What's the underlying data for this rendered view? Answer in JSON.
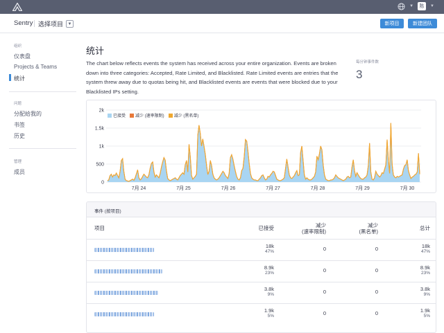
{
  "topbar": {
    "avatar_initial": "陈",
    "logo_icon": "sentry-logo-icon",
    "language_icon": "globe-icon"
  },
  "header": {
    "brand": "Sentry",
    "project_select": "选择项目",
    "new_project_button": "新项目",
    "new_team_button": "新建团队"
  },
  "sidebar": {
    "section_org": "组织",
    "items_org": [
      "仪表盘",
      "Projects & Teams",
      "统计"
    ],
    "active_item": "统计",
    "section_issues": "问题",
    "items_issues": [
      "分配给我的",
      "书签",
      "历史"
    ],
    "section_manage": "管理",
    "items_manage": [
      "成员"
    ]
  },
  "main": {
    "title": "统计",
    "description": "The chart below reflects events the system has received across your entire organization. Events are broken down into three categories: Accepted, Rate Limited, and Blacklisted. Rate Limited events are entries that the system threw away due to quotas being hit, and Blacklisted events are events that were blocked due to your Blacklisted IPs setting.",
    "epm_label": "每分钟事件数",
    "epm_value": "3"
  },
  "chart_data": {
    "type": "area",
    "legend": [
      {
        "name": "已接受",
        "color": "#a9d5f2"
      },
      {
        "name": "减少 (速率限制)",
        "color": "#e8793a"
      },
      {
        "name": "减少 (黑名单)",
        "color": "#f0a830"
      }
    ],
    "yticks": [
      "0",
      "500",
      "1k",
      "1.5k",
      "2k"
    ],
    "ylim": [
      0,
      2000
    ],
    "xticks": [
      "7月 24",
      "7月 25",
      "7月 26",
      "7月 27",
      "7月 28",
      "7月 29",
      "7月 30"
    ],
    "series": [
      {
        "name": "已接受",
        "values": [
          40,
          60,
          180,
          220,
          140,
          200,
          180,
          250,
          180,
          120,
          300,
          600,
          650,
          300,
          80,
          40,
          30,
          20,
          40,
          60,
          80,
          50,
          120,
          230,
          340,
          120,
          60,
          90,
          160,
          220,
          180,
          140,
          120,
          200,
          380,
          520,
          560,
          280,
          140,
          200,
          160,
          120,
          240,
          420,
          560,
          680,
          610,
          320,
          100,
          60,
          40,
          60,
          80,
          100,
          120,
          80,
          60,
          120,
          180,
          220,
          260,
          220,
          480,
          600,
          280,
          1050,
          700,
          180,
          80,
          120,
          160,
          220,
          1300,
          1580,
          1350,
          1000,
          1200,
          980,
          760,
          460,
          210,
          300,
          600,
          460,
          220,
          120,
          80,
          60,
          80,
          120,
          180,
          240,
          300,
          260,
          180,
          140,
          100,
          240,
          680,
          760,
          640,
          460,
          300,
          160,
          80,
          60,
          120,
          320,
          380,
          700,
          1180,
          1140,
          860,
          520,
          240,
          120,
          80,
          60,
          60,
          40,
          40,
          80,
          120,
          180,
          200,
          120,
          60,
          80,
          160,
          140,
          200,
          240,
          300,
          280,
          180,
          80,
          60,
          40,
          40,
          60,
          80,
          120,
          380,
          640,
          420,
          200,
          120,
          100,
          140,
          180,
          260,
          320,
          180,
          200,
          820,
          1000,
          600,
          200,
          80,
          120,
          80,
          60,
          60,
          80,
          120,
          160,
          280,
          720,
          620,
          780,
          1000,
          900,
          480,
          200,
          80,
          60,
          40,
          40,
          60,
          60,
          80,
          120,
          200,
          160,
          120,
          100,
          80,
          60,
          40,
          60,
          80,
          140,
          160,
          120,
          140,
          420,
          620,
          320,
          160,
          260,
          200,
          140,
          100,
          80,
          80,
          120,
          140,
          200,
          460,
          1080,
          280,
          80,
          60,
          120,
          300,
          220,
          180,
          140,
          180,
          260,
          240,
          360,
          480,
          1180,
          620,
          240,
          1640,
          500,
          200,
          140,
          120,
          160,
          140,
          160,
          180,
          200,
          360,
          460,
          480,
          620,
          320,
          200,
          100,
          140,
          160,
          200,
          220,
          280,
          800,
          220
        ]
      },
      {
        "name": "减少 (速率限制)",
        "values": []
      },
      {
        "name": "减少 (黑名单)",
        "values": []
      }
    ]
  },
  "table": {
    "title": "事件 (按项目)",
    "headers": {
      "project": "项目",
      "accepted": "已接受",
      "rate_limited_1": "减少",
      "rate_limited_2": "(速率限制)",
      "blacklisted_1": "减少",
      "blacklisted_2": "(黑名单)",
      "total": "总计"
    },
    "rows": [
      {
        "accepted": "18k",
        "accepted_pct": "47%",
        "rate_limited": "0",
        "blacklisted": "0",
        "total": "18k",
        "total_pct": "47%"
      },
      {
        "accepted": "8.9k",
        "accepted_pct": "23%",
        "rate_limited": "0",
        "blacklisted": "0",
        "total": "8.9k",
        "total_pct": "23%"
      },
      {
        "accepted": "3.8k",
        "accepted_pct": "9%",
        "rate_limited": "0",
        "blacklisted": "0",
        "total": "3.8k",
        "total_pct": "9%"
      },
      {
        "accepted": "1.9k",
        "accepted_pct": "5%",
        "rate_limited": "0",
        "blacklisted": "0",
        "total": "1.9k",
        "total_pct": "5%"
      }
    ]
  }
}
